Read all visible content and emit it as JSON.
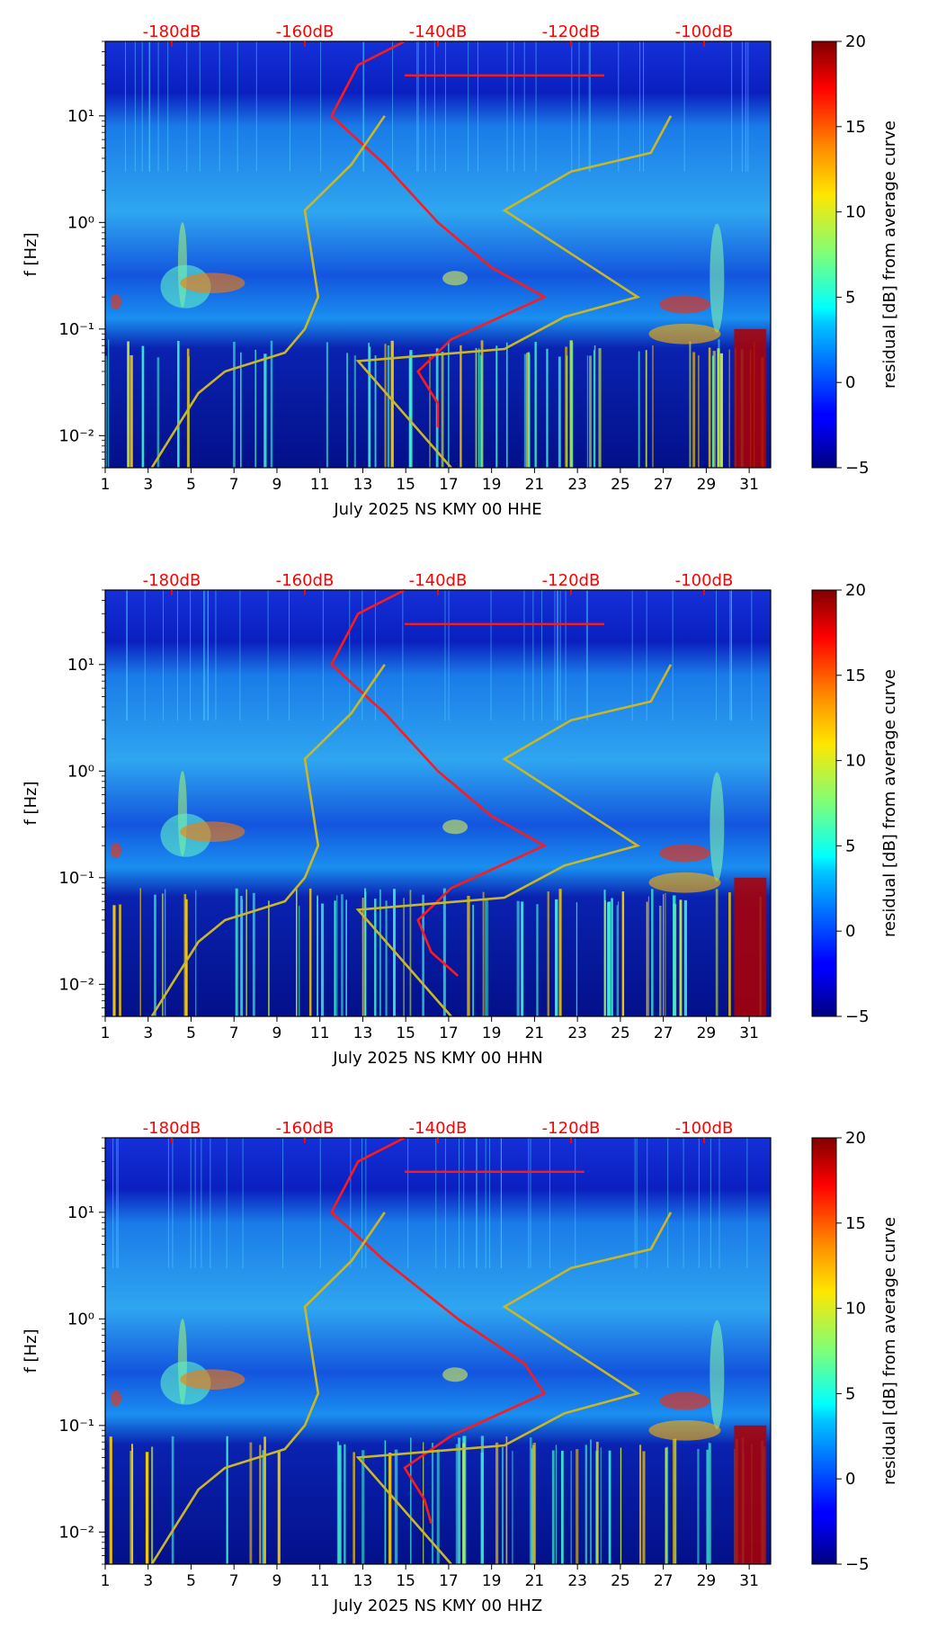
{
  "panel_defaults": {
    "ylabel": "f [Hz]",
    "cbar_label": "residual [dB] from average curve",
    "cbar_ticks": [
      "20",
      "15",
      "10",
      "5",
      "0",
      "−5"
    ],
    "cbar_range": [
      -5,
      20
    ],
    "x_ticks": [
      "1",
      "3",
      "5",
      "7",
      "9",
      "11",
      "13",
      "15",
      "17",
      "19",
      "21",
      "23",
      "25",
      "27",
      "29",
      "31"
    ],
    "x_range": [
      1,
      32
    ],
    "y_ticks": [
      "10¹",
      "10⁰",
      "10⁻¹",
      "10⁻²"
    ],
    "y_range_hz": [
      0.005,
      50
    ],
    "top_ticks": [
      "-180dB",
      "-160dB",
      "-140dB",
      "-120dB",
      "-100dB"
    ],
    "top_range_db": [
      -190,
      -90
    ]
  },
  "colors": {
    "red_curve": "#ff1a1a",
    "yellow_curve": "#c9b826",
    "top_tick_color": "#ff0000"
  },
  "chart_data": [
    {
      "type": "heatmap",
      "title": "",
      "xlabel": "July 2025 NS KMY 00 HHE",
      "ylabel": "f [Hz]",
      "xlim": [
        1,
        32
      ],
      "ylim": [
        0.005,
        50
      ],
      "yscale": "log",
      "colorbar": {
        "label": "residual [dB] from average curve",
        "range": [
          -5,
          20
        ]
      },
      "series": [
        {
          "name": "average PSD (red)",
          "db": [
            -145,
            -152,
            -156,
            -148,
            -140,
            -132,
            -124,
            -138,
            -143,
            -140,
            -140,
            -115
          ],
          "hz": [
            50,
            30,
            10,
            3.5,
            1.0,
            0.38,
            0.2,
            0.08,
            0.04,
            0.02,
            0.012,
            24
          ]
        },
        {
          "name": "noise model envelope (yellow)",
          "db": [
            -183,
            -180,
            -176,
            -172,
            -163,
            -160,
            -158,
            -160,
            -153,
            -148
          ],
          "hz": [
            0.005,
            0.01,
            0.025,
            0.04,
            0.06,
            0.1,
            0.2,
            1.3,
            3.5,
            10
          ]
        }
      ]
    },
    {
      "type": "heatmap",
      "title": "",
      "xlabel": "July 2025 NS KMY 00 HHN",
      "ylabel": "f [Hz]",
      "xlim": [
        1,
        32
      ],
      "ylim": [
        0.005,
        50
      ],
      "yscale": "log",
      "colorbar": {
        "label": "residual [dB] from average curve",
        "range": [
          -5,
          20
        ]
      },
      "series": [
        {
          "name": "average PSD (red)",
          "db": [
            -145,
            -152,
            -156,
            -148,
            -140,
            -132,
            -124,
            -138,
            -143,
            -141,
            -137,
            -115
          ],
          "hz": [
            50,
            30,
            10,
            3.5,
            1.0,
            0.38,
            0.2,
            0.08,
            0.04,
            0.02,
            0.012,
            24
          ]
        },
        {
          "name": "noise model envelope (yellow)",
          "db": [
            -183,
            -180,
            -176,
            -172,
            -163,
            -160,
            -158,
            -160,
            -153,
            -148
          ],
          "hz": [
            0.005,
            0.01,
            0.025,
            0.04,
            0.06,
            0.1,
            0.2,
            1.3,
            3.5,
            10
          ]
        }
      ]
    },
    {
      "type": "heatmap",
      "title": "",
      "xlabel": "July 2025 NS KMY 00 HHZ",
      "ylabel": "f [Hz]",
      "xlim": [
        1,
        32
      ],
      "ylim": [
        0.005,
        50
      ],
      "yscale": "log",
      "colorbar": {
        "label": "residual [dB] from average curve",
        "range": [
          -5,
          20
        ]
      },
      "series": [
        {
          "name": "average PSD (red)",
          "db": [
            -145,
            -152,
            -156,
            -148,
            -137,
            -127,
            -124,
            -138,
            -145,
            -142,
            -141,
            -118
          ],
          "hz": [
            50,
            30,
            10,
            3.5,
            1.0,
            0.38,
            0.2,
            0.08,
            0.04,
            0.02,
            0.012,
            24
          ]
        },
        {
          "name": "noise model envelope (yellow)",
          "db": [
            -183,
            -180,
            -176,
            -172,
            -163,
            -160,
            -158,
            -160,
            -153,
            -148
          ],
          "hz": [
            0.005,
            0.01,
            0.025,
            0.04,
            0.06,
            0.1,
            0.2,
            1.3,
            3.5,
            10
          ]
        }
      ]
    }
  ]
}
